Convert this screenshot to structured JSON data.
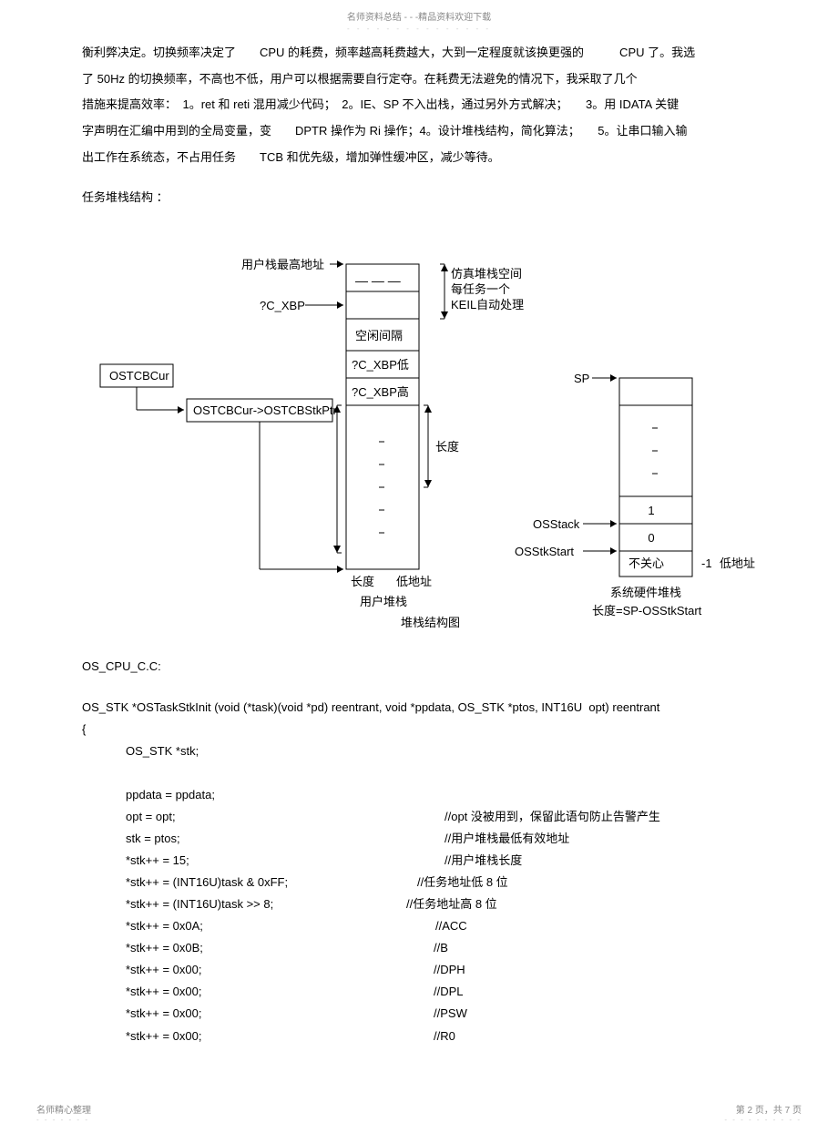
{
  "header": {
    "top": "名师资料总结 - - -精品资料欢迎下载",
    "dots": "- - - - - - - - - - - - - - -"
  },
  "paragraphs": {
    "p1": "衡利弊决定。切换频率决定了　　CPU 的耗费，频率越高耗费越大，大到一定程度就该换更强的　　　CPU 了。我选",
    "p2": "了 50Hz 的切换频率，不高也不低，用户可以根据需要自行定夺。在耗费无法避免的情况下，我采取了几个",
    "p3": "措施来提高效率：　1。ret 和 reti 混用减少代码；　2。IE、SP 不入出栈，通过另外方式解决；　　3。用 IDATA 关键",
    "p4": "字声明在汇编中用到的全局变量，变　　DPTR 操作为 Ri 操作；4。设计堆栈结构，简化算法；　　5。让串口输入输",
    "p5": "出工作在系统态，不占用任务　　TCB 和优先级，增加弹性缓冲区，减少等待。",
    "p6": "任务堆栈结构 ："
  },
  "diagram": {
    "leftStack": {
      "top": "用户栈最高地址",
      "xbp": "?C_XBP",
      "idle": "空闲间隔",
      "xbpLow": "?C_XBP低",
      "xbpHigh": "?C_XBP高",
      "length1": "长度",
      "length2": "长度",
      "lowAddr": "低地址",
      "bottomLabel": "用户堆栈"
    },
    "boxes": {
      "ostcbcur": "OSTCBCur",
      "ostcbptr": "OSTCBCur->OSTCBStkPtr"
    },
    "rightStack": {
      "sim1": "仿真堆栈空间",
      "sim2": "每任务一个",
      "sim3": "KEIL自动处理",
      "sp": "SP",
      "osstack": "OSStack",
      "osstkstart": "OSStkStart",
      "noCare": "不关心",
      "val1": "1",
      "val0": "0",
      "valNeg1": "-1",
      "lowAddr": "低地址",
      "bottomLabel": "系统硬件堆栈",
      "lenFormula": "长度=SP-OSStkStart"
    },
    "caption": "堆栈结构图"
  },
  "code": {
    "title": "OS_CPU_C.C:",
    "funcSig": "OS_STK *OSTaskStkInit (void (*task)(void *pd) reentrant, void *ppdata, OS_STK *ptos, INT16U  opt) reentrant",
    "brace": "{",
    "decl": "OS_STK *stk;",
    "lines": [
      {
        "l": "ppdata = ppdata;",
        "r": ""
      },
      {
        "l": "opt       = opt;",
        "r": "//opt 没被用到，保留此语句防止告警产生"
      },
      {
        "l": "stk       = ptos;",
        "r": "//用户堆栈最低有效地址"
      },
      {
        "l": "*stk++  = 15;",
        "r": "//用户堆栈长度"
      },
      {
        "l": "*stk++  = (INT16U)task  & 0xFF;",
        "r": "//任务地址低   8 位"
      },
      {
        "l": "*stk++  = (INT16U)task  >> 8;",
        "r": "//任务地址高   8 位"
      },
      {
        "l": "*stk++  = 0x0A;",
        "r": "//ACC"
      },
      {
        "l": "*stk++  = 0x0B;",
        "r": "//B"
      },
      {
        "l": "*stk++  = 0x00;",
        "r": "//DPH"
      },
      {
        "l": "*stk++  = 0x00;",
        "r": "//DPL"
      },
      {
        "l": "*stk++  = 0x00;",
        "r": "//PSW"
      },
      {
        "l": "*stk++  = 0x00;",
        "r": "//R0"
      }
    ],
    "rightOffsets": [
      0,
      0,
      0,
      0,
      -30,
      -42,
      -10,
      -12,
      -12,
      -12,
      -12,
      -12
    ]
  },
  "footer": {
    "left": "名师精心整理",
    "right": "第 2 页，共 7 页",
    "dotsL": "- - - - - - -",
    "dotsR": "- - - - - - - - - -"
  },
  "colors": {
    "text": "#000000",
    "stroke": "#000000",
    "bg": "#ffffff"
  }
}
